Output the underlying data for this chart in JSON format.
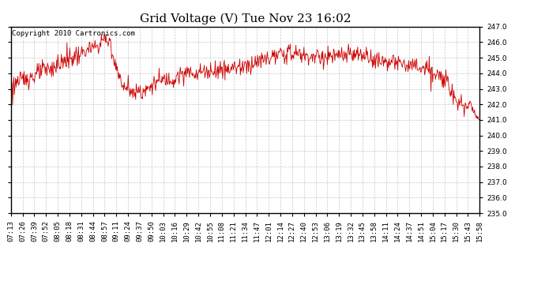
{
  "title": "Grid Voltage (V) Tue Nov 23 16:02",
  "copyright": "Copyright 2010 Cartronics.com",
  "line_color": "#cc0000",
  "bg_color": "#ffffff",
  "plot_bg_color": "#ffffff",
  "grid_color": "#bbbbbb",
  "ylim": [
    235.0,
    247.0
  ],
  "yticks": [
    235.0,
    236.0,
    237.0,
    238.0,
    239.0,
    240.0,
    241.0,
    242.0,
    243.0,
    244.0,
    245.0,
    246.0,
    247.0
  ],
  "xtick_labels": [
    "07:13",
    "07:26",
    "07:39",
    "07:52",
    "08:05",
    "08:18",
    "08:31",
    "08:44",
    "08:57",
    "09:11",
    "09:24",
    "09:37",
    "09:50",
    "10:03",
    "10:16",
    "10:29",
    "10:42",
    "10:55",
    "11:08",
    "11:21",
    "11:34",
    "11:47",
    "12:01",
    "12:14",
    "12:27",
    "12:40",
    "12:53",
    "13:06",
    "13:19",
    "13:32",
    "13:45",
    "13:58",
    "14:11",
    "14:24",
    "14:37",
    "14:51",
    "15:04",
    "15:17",
    "15:30",
    "15:43",
    "15:58"
  ],
  "title_fontsize": 11,
  "tick_fontsize": 6.5,
  "copyright_fontsize": 6.5
}
